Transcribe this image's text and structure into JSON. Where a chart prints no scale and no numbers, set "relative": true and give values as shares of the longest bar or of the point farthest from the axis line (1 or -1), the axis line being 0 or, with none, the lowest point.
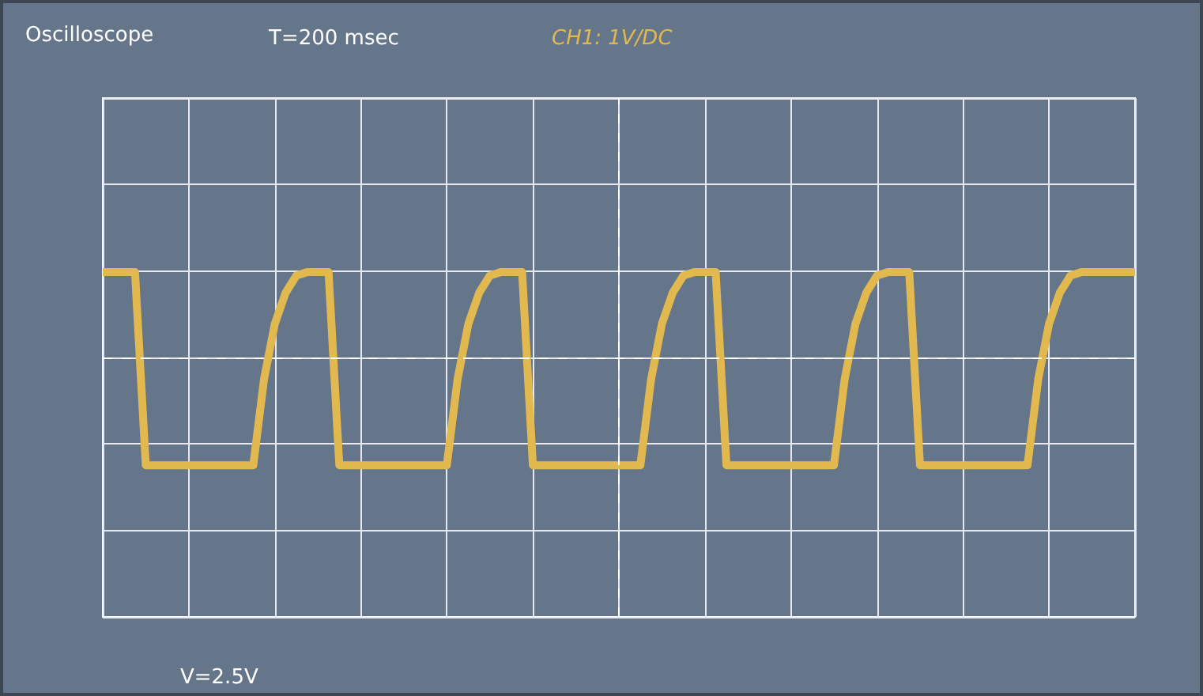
{
  "chart_data": {
    "type": "line",
    "title": "Oscilloscope",
    "annotations": [
      "T=200 msec",
      "V=2.5V"
    ],
    "relative": true,
    "grid": true,
    "line_style": "solid",
    "categories": [
      null,
      null,
      null,
      null,
      null,
      null,
      null,
      null,
      null,
      null,
      null,
      null,
      null,
      null,
      null,
      null,
      null,
      null,
      null,
      null,
      null,
      null,
      null,
      null,
      null,
      null,
      null,
      null,
      null,
      null,
      null,
      null,
      null,
      null,
      null,
      null,
      null,
      null,
      null,
      null,
      null,
      null,
      null,
      null,
      null,
      null,
      null,
      null,
      null,
      null,
      null,
      null,
      null,
      null,
      null,
      null,
      null,
      null,
      null,
      null,
      null,
      null,
      null,
      null,
      null,
      null,
      null,
      null,
      null,
      null,
      null,
      null,
      null,
      null,
      null,
      null,
      null,
      null,
      null,
      null,
      null,
      null,
      null,
      null,
      null,
      null,
      null,
      null,
      null,
      null,
      null,
      null,
      null,
      null,
      null,
      null,
      null
    ],
    "series": [
      {
        "name": "CH1: 1V/DC",
        "color": "#e2b94f",
        "values": [
          1,
          1,
          1,
          1,
          0.44,
          0.44,
          0.44,
          0.44,
          0.44,
          0.44,
          0.44,
          0.44,
          0.44,
          0.44,
          0.44,
          0.69,
          0.85,
          0.94,
          0.99,
          1,
          1,
          1,
          0.44,
          0.44,
          0.44,
          0.44,
          0.44,
          0.44,
          0.44,
          0.44,
          0.44,
          0.44,
          0.44,
          0.69,
          0.85,
          0.94,
          0.99,
          1,
          1,
          1,
          0.44,
          0.44,
          0.44,
          0.44,
          0.44,
          0.44,
          0.44,
          0.44,
          0.44,
          0.44,
          0.44,
          0.69,
          0.85,
          0.94,
          0.99,
          1,
          1,
          1,
          0.44,
          0.44,
          0.44,
          0.44,
          0.44,
          0.44,
          0.44,
          0.44,
          0.44,
          0.44,
          0.44,
          0.69,
          0.85,
          0.94,
          0.99,
          1,
          1,
          1,
          0.44,
          0.44,
          0.44,
          0.44,
          0.44,
          0.44,
          0.44,
          0.44,
          0.44,
          0.44,
          0.44,
          0.69,
          0.85,
          0.94,
          0.99,
          1,
          1,
          1,
          1,
          1,
          1
        ]
      }
    ],
    "ref_lines": [
      {
        "axis": "x",
        "color": "#ffffff",
        "line_style": "dashed"
      },
      {
        "axis": "y",
        "value": 0.75,
        "color": "#ffffff",
        "line_style": "dashed"
      }
    ]
  }
}
